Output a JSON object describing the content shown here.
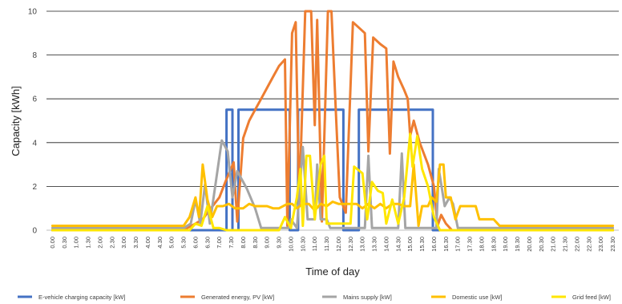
{
  "chart_data": {
    "type": "line",
    "title": "",
    "xlabel": "Time of day",
    "ylabel": "Capacity [kWh]",
    "ylim": [
      0,
      10
    ],
    "yticks": [
      0,
      2,
      4,
      6,
      8,
      10
    ],
    "grid": "horizontal",
    "legend": "bottom",
    "x": [
      "0.00",
      "0.30",
      "1.00",
      "1.30",
      "2.00",
      "2.30",
      "3.00",
      "3.30",
      "4.00",
      "4.30",
      "5.00",
      "5.30",
      "6.00",
      "6.30",
      "7.00",
      "7.30",
      "8.00",
      "8.30",
      "9.00",
      "9.30",
      "10.00",
      "10.30",
      "11.00",
      "11.30",
      "12.00",
      "12.30",
      "13.00",
      "13.30",
      "14.00",
      "14.30",
      "15.00",
      "15.30",
      "16.00",
      "16.30",
      "17.00",
      "17.30",
      "18.00",
      "18.30",
      "19.00",
      "19.30",
      "20.00",
      "20.30",
      "21.00",
      "21.30",
      "22.00",
      "22.30",
      "23.00",
      "23.30"
    ],
    "series": [
      {
        "name": "E-vehicle charging capacity [kW]",
        "color": "#4472C4",
        "points": [
          [
            0,
            0
          ],
          [
            14,
            0
          ],
          [
            14.6,
            0
          ],
          [
            14.6,
            5.5
          ],
          [
            15.1,
            5.5
          ],
          [
            15.1,
            0
          ],
          [
            15.6,
            0
          ],
          [
            15.6,
            5.5
          ],
          [
            19.9,
            5.5
          ],
          [
            19.9,
            0
          ],
          [
            20.6,
            0
          ],
          [
            20.6,
            5.5
          ],
          [
            24.4,
            5.5
          ],
          [
            24.4,
            0
          ],
          [
            25.7,
            0
          ],
          [
            25.7,
            5.5
          ],
          [
            31.9,
            5.5
          ],
          [
            31.9,
            0
          ],
          [
            47,
            0
          ]
        ]
      },
      {
        "name": "Generated energy, PV [kW]",
        "color": "#ED7D31",
        "points": [
          [
            0,
            0
          ],
          [
            10.8,
            0
          ],
          [
            11.3,
            0.1
          ],
          [
            12,
            0.3
          ],
          [
            12.6,
            0.5
          ],
          [
            13,
            0.8
          ],
          [
            14,
            1.5
          ],
          [
            14.5,
            2.2
          ],
          [
            15.2,
            3.1
          ],
          [
            15.5,
            0.4
          ],
          [
            16,
            4.2
          ],
          [
            16.5,
            5
          ],
          [
            17,
            5.5
          ],
          [
            17.5,
            6
          ],
          [
            18,
            6.5
          ],
          [
            18.5,
            7
          ],
          [
            19,
            7.5
          ],
          [
            19.5,
            7.8
          ],
          [
            19.7,
            0.2
          ],
          [
            20.1,
            9
          ],
          [
            20.4,
            9.5
          ],
          [
            20.7,
            1.2
          ],
          [
            21.2,
            10
          ],
          [
            21.7,
            10
          ],
          [
            22,
            4.8
          ],
          [
            22.2,
            9.6
          ],
          [
            22.6,
            0.4
          ],
          [
            23.1,
            10
          ],
          [
            23.4,
            10
          ],
          [
            23.8,
            5
          ],
          [
            24.1,
            1.5
          ],
          [
            24.6,
            0.8
          ],
          [
            25.2,
            9.5
          ],
          [
            25.8,
            9.2
          ],
          [
            26.2,
            9
          ],
          [
            26.5,
            3.6
          ],
          [
            26.9,
            8.8
          ],
          [
            27.5,
            8.5
          ],
          [
            28,
            8.3
          ],
          [
            28.3,
            3.5
          ],
          [
            28.6,
            7.7
          ],
          [
            29,
            7
          ],
          [
            29.5,
            6.4
          ],
          [
            29.8,
            6
          ],
          [
            30,
            4.3
          ],
          [
            30.3,
            5
          ],
          [
            30.8,
            4
          ],
          [
            31.5,
            3
          ],
          [
            32,
            2
          ],
          [
            32.3,
            0.2
          ],
          [
            32.6,
            0.7
          ],
          [
            33,
            0.3
          ],
          [
            33.5,
            0
          ],
          [
            47,
            0
          ]
        ]
      },
      {
        "name": "Mains supply [kW]",
        "color": "#A5A5A5",
        "points": [
          [
            0,
            0.1
          ],
          [
            11,
            0.1
          ],
          [
            11.6,
            0.3
          ],
          [
            12,
            1.4
          ],
          [
            12.4,
            0.3
          ],
          [
            12.8,
            2.1
          ],
          [
            13.2,
            0.3
          ],
          [
            14.2,
            4.1
          ],
          [
            14.7,
            3.6
          ],
          [
            15.1,
            1.5
          ],
          [
            15.5,
            2.7
          ],
          [
            16.3,
            1.9
          ],
          [
            17,
            1
          ],
          [
            17.5,
            0.1
          ],
          [
            19.8,
            0.1
          ],
          [
            20,
            0.5
          ],
          [
            20.5,
            0.1
          ],
          [
            21,
            3.8
          ],
          [
            21.4,
            0.5
          ],
          [
            22,
            0.5
          ],
          [
            22.2,
            3
          ],
          [
            22.5,
            0.5
          ],
          [
            23,
            0.5
          ],
          [
            23.3,
            0.1
          ],
          [
            26.2,
            0.1
          ],
          [
            26.5,
            3.4
          ],
          [
            26.8,
            0.1
          ],
          [
            29,
            0.1
          ],
          [
            29.3,
            3.5
          ],
          [
            29.6,
            0.1
          ],
          [
            30.5,
            0.1
          ],
          [
            31.1,
            0.1
          ],
          [
            31.4,
            0.1
          ],
          [
            32.2,
            0.1
          ],
          [
            32.4,
            2.8
          ],
          [
            32.9,
            1.1
          ],
          [
            33.3,
            1.5
          ],
          [
            33.6,
            1.2
          ],
          [
            34,
            0.1
          ],
          [
            47,
            0.1
          ]
        ]
      },
      {
        "name": "Domestic use [kW]",
        "color": "#FFC000",
        "points": [
          [
            0,
            0.2
          ],
          [
            11,
            0.2
          ],
          [
            11.5,
            0.6
          ],
          [
            12,
            1.5
          ],
          [
            12.3,
            0.6
          ],
          [
            12.6,
            3
          ],
          [
            13,
            1.4
          ],
          [
            13.4,
            0.6
          ],
          [
            13.8,
            1.1
          ],
          [
            14.3,
            1.1
          ],
          [
            14.8,
            1.2
          ],
          [
            15.3,
            1
          ],
          [
            16,
            1
          ],
          [
            16.5,
            1.2
          ],
          [
            17,
            1.1
          ],
          [
            17.5,
            1.1
          ],
          [
            18,
            1.1
          ],
          [
            18.5,
            1
          ],
          [
            19,
            1
          ],
          [
            19.7,
            1.2
          ],
          [
            20.1,
            1.2
          ],
          [
            20.5,
            1
          ],
          [
            21,
            1.2
          ],
          [
            21.5,
            1.2
          ],
          [
            22,
            0.9
          ],
          [
            22.5,
            1.2
          ],
          [
            23,
            1.1
          ],
          [
            23.5,
            1.3
          ],
          [
            24,
            1.2
          ],
          [
            24.5,
            1.2
          ],
          [
            25,
            1.2
          ],
          [
            25.5,
            1.2
          ],
          [
            26,
            1
          ],
          [
            26.5,
            1.2
          ],
          [
            27,
            1
          ],
          [
            27.5,
            1.2
          ],
          [
            28,
            1
          ],
          [
            28.5,
            1.2
          ],
          [
            29,
            1.2
          ],
          [
            29.5,
            1.1
          ],
          [
            30,
            1.1
          ],
          [
            30.3,
            3
          ],
          [
            30.7,
            0.2
          ],
          [
            31,
            1.1
          ],
          [
            31.5,
            1.1
          ],
          [
            31.8,
            1.5
          ],
          [
            32.2,
            1.3
          ],
          [
            32.5,
            3
          ],
          [
            32.8,
            3
          ],
          [
            33,
            1.5
          ],
          [
            33.4,
            1.5
          ],
          [
            33.8,
            0.5
          ],
          [
            34.2,
            1.1
          ],
          [
            35.5,
            1.1
          ],
          [
            35.8,
            0.5
          ],
          [
            37,
            0.5
          ],
          [
            37.5,
            0.2
          ],
          [
            47,
            0.2
          ]
        ]
      },
      {
        "name": "Grid feed [kW]",
        "color": "#FFE600",
        "points": [
          [
            0,
            0
          ],
          [
            11.5,
            0
          ],
          [
            12,
            0.3
          ],
          [
            12.5,
            0.2
          ],
          [
            13,
            1.1
          ],
          [
            13.5,
            0.1
          ],
          [
            14,
            0.1
          ],
          [
            14.6,
            0
          ],
          [
            19,
            0
          ],
          [
            19.5,
            0.6
          ],
          [
            20,
            0.1
          ],
          [
            20.5,
            1.5
          ],
          [
            20.8,
            2.8
          ],
          [
            21,
            0.2
          ],
          [
            21.3,
            3.4
          ],
          [
            21.6,
            3.4
          ],
          [
            22,
            0.5
          ],
          [
            22.5,
            3
          ],
          [
            22.8,
            3.4
          ],
          [
            23,
            0.3
          ],
          [
            25,
            0.3
          ],
          [
            25.3,
            2.9
          ],
          [
            26,
            2.6
          ],
          [
            26.4,
            0.5
          ],
          [
            26.8,
            2.2
          ],
          [
            27.3,
            1.8
          ],
          [
            27.7,
            1.7
          ],
          [
            28,
            0.3
          ],
          [
            28.5,
            1.4
          ],
          [
            29,
            0.3
          ],
          [
            29.5,
            1.5
          ],
          [
            30,
            4.4
          ],
          [
            30.2,
            2.9
          ],
          [
            30.6,
            4.3
          ],
          [
            31,
            2.8
          ],
          [
            31.5,
            2
          ],
          [
            32,
            0.6
          ],
          [
            32.5,
            0
          ],
          [
            47,
            0
          ]
        ]
      }
    ]
  }
}
